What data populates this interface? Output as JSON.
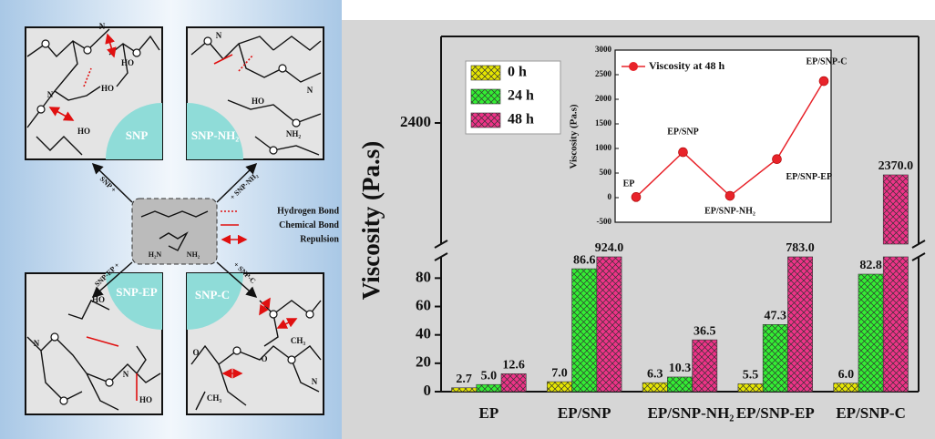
{
  "diagram": {
    "panels": [
      {
        "title": "SNP",
        "labels": [
          "HO",
          "HO",
          "HO",
          "N",
          "N"
        ]
      },
      {
        "title": "SNP-NH₂",
        "labels": [
          "N",
          "N",
          "HO",
          "NH₂"
        ]
      },
      {
        "title": "SNP-EP",
        "labels": [
          "HO",
          "HO",
          "N",
          "N"
        ]
      },
      {
        "title": "SNP-C",
        "labels": [
          "CH₃",
          "CH₃",
          "O",
          "O",
          "N"
        ]
      }
    ],
    "arrows": [
      "SNP +",
      "+ SNP-NH₂",
      "SNP-EP +",
      "+ SNP-C"
    ],
    "legend": [
      "Hydrogen Bond",
      "Chemical Bond",
      "Repulsion"
    ],
    "molecule": [
      "H₂N",
      "NH₂"
    ]
  },
  "chart_data": [
    {
      "type": "bar",
      "ylabel": "Viscosity (Pa.s)",
      "categories": [
        "EP",
        "EP/SNP",
        "EP/SNP-NH₂",
        "EP/SNP-EP",
        "EP/SNP-C"
      ],
      "series": [
        {
          "name": "0 h",
          "color": "#e6e600",
          "values": [
            2.7,
            7.0,
            6.3,
            5.5,
            6.0
          ],
          "value_labels": [
            "2.7",
            "7.0",
            "6.3",
            "5.5",
            "6.0"
          ]
        },
        {
          "name": "24 h",
          "color": "#33ee33",
          "values": [
            5.0,
            86.6,
            10.3,
            47.3,
            82.8
          ],
          "value_labels": [
            "5.0",
            "86.6",
            "10.3",
            "47.3",
            "82.8"
          ]
        },
        {
          "name": "48 h",
          "color": "#ee3388",
          "values": [
            12.6,
            924.0,
            36.5,
            783.0,
            2370.0
          ],
          "value_labels": [
            "12.6",
            "924.0",
            "36.5",
            "783.0",
            "2370.0"
          ]
        }
      ],
      "ylim": [
        0,
        95
      ],
      "yticks": [
        0,
        20,
        40,
        60,
        80
      ],
      "ylim_upper": [
        2330,
        2450
      ],
      "yticks_upper": [
        2400
      ],
      "legend": "upper left"
    },
    {
      "type": "line",
      "ylabel": "Viscosity (Pa.s)",
      "categories": [
        "EP",
        "EP/SNP",
        "EP/SNP-NH₂",
        "EP/SNP-EP",
        "EP/SNP-C"
      ],
      "series": [
        {
          "name": "Viscosity at 48 h",
          "color": "#e8232a",
          "values": [
            12.6,
            924.0,
            36.5,
            783.0,
            2370.0
          ]
        }
      ],
      "ylim": [
        -500,
        3000
      ],
      "yticks": [
        -500,
        0,
        500,
        1000,
        1500,
        2000,
        2500,
        3000
      ]
    }
  ]
}
